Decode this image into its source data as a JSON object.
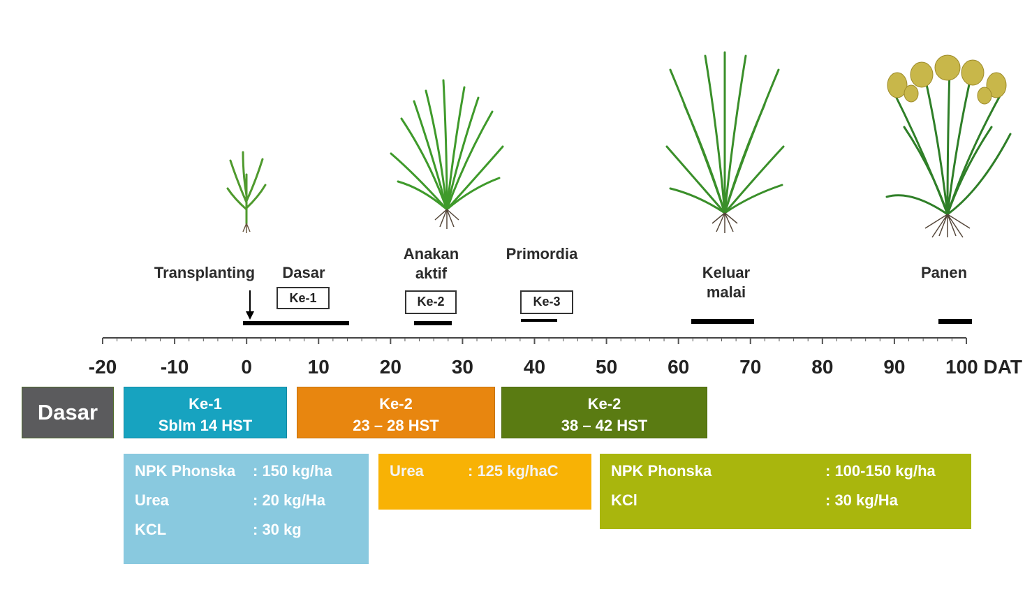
{
  "stages": {
    "transplanting": "Transplanting",
    "dasar": "Dasar",
    "anakan_line1": "Anakan",
    "anakan_line2": "aktif",
    "primordia": "Primordia",
    "keluar_line1": "Keluar",
    "keluar_line2": "malai",
    "panen": "Panen"
  },
  "tags": {
    "ke1": "Ke-1",
    "ke2": "Ke-2",
    "ke3": "Ke-3"
  },
  "axis": {
    "min": -20,
    "max": 100,
    "ticks": [
      "-20",
      "-10",
      "0",
      "10",
      "20",
      "30",
      "40",
      "50",
      "60",
      "70",
      "80",
      "90",
      "100 DAT"
    ]
  },
  "bands": {
    "dasar": "Dasar",
    "b1_line1": "Ke-1",
    "b1_line2": "Sblm 14 HST",
    "b2_line1": "Ke-2",
    "b2_line2": "23 – 28 HST",
    "b3_line1": "Ke-2",
    "b3_line2": "38 – 42 HST"
  },
  "info1": {
    "r1_name": "NPK Phonska",
    "r1_val": ": 150 kg/ha",
    "r2_name": "Urea",
    "r2_val": ": 20 kg/Ha",
    "r3_name": "KCL",
    "r3_val": ": 30 kg"
  },
  "info2": {
    "r1_name": "Urea",
    "r1_val": ": 125 kg/haC"
  },
  "info3": {
    "r1_name": "NPK Phonska",
    "r1_val": ": 100-150 kg/ha",
    "r2_name": "KCl",
    "r2_val": ": 30 kg/Ha"
  },
  "colors": {
    "dasar_band": "#5b5b5d",
    "ke1_band": "#17a3c0",
    "ke2_band": "#e8860f",
    "ke3_band": "#5a7b12",
    "info1": "#89c9df",
    "info2": "#f8b205",
    "info3": "#a9b60d",
    "ke1_tag": "#dff1fb",
    "ke2_tag": "#c9f4c3",
    "ke3_tag": "#fbf8c8"
  }
}
